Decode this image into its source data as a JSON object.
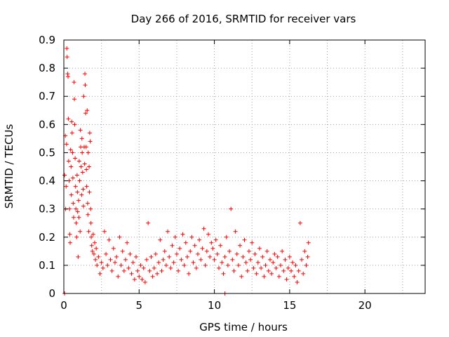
{
  "chart_data": {
    "type": "scatter",
    "title": "Day 266 of 2016, SRMTID for receiver vars",
    "xlabel": "GPS time / hours",
    "ylabel": "SRMTID / TECUs",
    "xlim": [
      0,
      24
    ],
    "ylim": [
      0,
      0.9
    ],
    "xticks": [
      0,
      5,
      10,
      15,
      20
    ],
    "yticks": [
      0,
      0.1,
      0.2,
      0.3,
      0.4,
      0.5,
      0.6,
      0.7,
      0.8,
      0.9
    ],
    "ytick_labels": [
      "0",
      "0.1",
      "0.2",
      "0.3",
      "0.4",
      "0.5",
      "0.6",
      "0.7",
      "0.8",
      "0.9"
    ],
    "grid": true,
    "marker": "+",
    "color": "#ff0000",
    "series": [
      {
        "name": "SRMTID",
        "points": [
          [
            0.05,
            0.42
          ],
          [
            0.1,
            0.56
          ],
          [
            0.12,
            0.3
          ],
          [
            0.15,
            0.38
          ],
          [
            0.18,
            0.53
          ],
          [
            0.2,
            0.87
          ],
          [
            0.22,
            0.84
          ],
          [
            0.25,
            0.78
          ],
          [
            0.28,
            0.77
          ],
          [
            0.3,
            0.62
          ],
          [
            0.32,
            0.47
          ],
          [
            0.35,
            0.4
          ],
          [
            0.38,
            0.3
          ],
          [
            0.4,
            0.21
          ],
          [
            0.42,
            0.18
          ],
          [
            0.45,
            0.51
          ],
          [
            0.48,
            0.45
          ],
          [
            0.5,
            0.35
          ],
          [
            0.52,
            0.61
          ],
          [
            0.55,
            0.57
          ],
          [
            0.58,
            0.5
          ],
          [
            0.6,
            0.41
          ],
          [
            0.62,
            0.32
          ],
          [
            0.65,
            0.27
          ],
          [
            0.68,
            0.75
          ],
          [
            0.7,
            0.69
          ],
          [
            0.72,
            0.6
          ],
          [
            0.75,
            0.48
          ],
          [
            0.78,
            0.38
          ],
          [
            0.8,
            0.3
          ],
          [
            0.82,
            0.25
          ],
          [
            0.85,
            0.2
          ],
          [
            0.88,
            0.42
          ],
          [
            0.9,
            0.36
          ],
          [
            0.92,
            0.29
          ],
          [
            0.95,
            0.13
          ],
          [
            0.98,
            0.33
          ],
          [
            1.0,
            0.27
          ],
          [
            1.02,
            0.47
          ],
          [
            1.05,
            0.4
          ],
          [
            1.08,
            0.22
          ],
          [
            1.1,
            0.58
          ],
          [
            1.12,
            0.52
          ],
          [
            1.15,
            0.45
          ],
          [
            1.18,
            0.35
          ],
          [
            1.2,
            0.55
          ],
          [
            1.22,
            0.5
          ],
          [
            1.25,
            0.43
          ],
          [
            1.28,
            0.37
          ],
          [
            1.3,
            0.31
          ],
          [
            1.32,
            0.7
          ],
          [
            1.35,
            0.52
          ],
          [
            1.38,
            0.46
          ],
          [
            1.4,
            0.78
          ],
          [
            1.42,
            0.74
          ],
          [
            1.45,
            0.64
          ],
          [
            1.48,
            0.52
          ],
          [
            1.5,
            0.44
          ],
          [
            1.52,
            0.38
          ],
          [
            1.55,
            0.65
          ],
          [
            1.58,
            0.32
          ],
          [
            1.6,
            0.28
          ],
          [
            1.62,
            0.5
          ],
          [
            1.65,
            0.22
          ],
          [
            1.68,
            0.45
          ],
          [
            1.7,
            0.36
          ],
          [
            1.72,
            0.57
          ],
          [
            1.75,
            0.54
          ],
          [
            1.78,
            0.3
          ],
          [
            1.8,
            0.25
          ],
          [
            1.82,
            0.2
          ],
          [
            1.85,
            0.17
          ],
          [
            1.9,
            0.15
          ],
          [
            1.95,
            0.21
          ],
          [
            2.0,
            0.14
          ],
          [
            2.05,
            0.18
          ],
          [
            2.1,
            0.12
          ],
          [
            2.15,
            0.16
          ],
          [
            2.2,
            0.1
          ],
          [
            2.3,
            0.13
          ],
          [
            2.4,
            0.07
          ],
          [
            2.5,
            0.11
          ],
          [
            2.6,
            0.09
          ],
          [
            2.7,
            0.22
          ],
          [
            2.8,
            0.14
          ],
          [
            2.9,
            0.1
          ],
          [
            3.0,
            0.19
          ],
          [
            3.1,
            0.12
          ],
          [
            3.2,
            0.08
          ],
          [
            3.3,
            0.16
          ],
          [
            3.4,
            0.11
          ],
          [
            3.5,
            0.13
          ],
          [
            3.6,
            0.06
          ],
          [
            3.7,
            0.2
          ],
          [
            3.8,
            0.1
          ],
          [
            3.9,
            0.15
          ],
          [
            4.0,
            0.08
          ],
          [
            4.1,
            0.12
          ],
          [
            4.2,
            0.18
          ],
          [
            4.3,
            0.09
          ],
          [
            4.4,
            0.14
          ],
          [
            4.5,
            0.07
          ],
          [
            4.6,
            0.11
          ],
          [
            4.7,
            0.05
          ],
          [
            4.8,
            0.13
          ],
          [
            4.9,
            0.08
          ],
          [
            5.0,
            0.06
          ],
          [
            5.1,
            0.1
          ],
          [
            5.2,
            0.05
          ],
          [
            5.3,
            0.09
          ],
          [
            5.4,
            0.04
          ],
          [
            5.5,
            0.12
          ],
          [
            5.6,
            0.25
          ],
          [
            5.7,
            0.08
          ],
          [
            5.8,
            0.13
          ],
          [
            5.9,
            0.06
          ],
          [
            6.0,
            0.09
          ],
          [
            6.1,
            0.14
          ],
          [
            6.2,
            0.07
          ],
          [
            6.3,
            0.11
          ],
          [
            6.4,
            0.19
          ],
          [
            6.5,
            0.08
          ],
          [
            6.6,
            0.12
          ],
          [
            6.7,
            0.15
          ],
          [
            6.8,
            0.1
          ],
          [
            6.9,
            0.22
          ],
          [
            7.0,
            0.13
          ],
          [
            7.1,
            0.09
          ],
          [
            7.2,
            0.17
          ],
          [
            7.3,
            0.11
          ],
          [
            7.4,
            0.2
          ],
          [
            7.5,
            0.14
          ],
          [
            7.6,
            0.08
          ],
          [
            7.7,
            0.16
          ],
          [
            7.8,
            0.12
          ],
          [
            7.9,
            0.21
          ],
          [
            8.0,
            0.1
          ],
          [
            8.1,
            0.18
          ],
          [
            8.2,
            0.13
          ],
          [
            8.3,
            0.07
          ],
          [
            8.4,
            0.15
          ],
          [
            8.5,
            0.2
          ],
          [
            8.6,
            0.11
          ],
          [
            8.7,
            0.17
          ],
          [
            8.8,
            0.09
          ],
          [
            8.9,
            0.14
          ],
          [
            9.0,
            0.19
          ],
          [
            9.1,
            0.12
          ],
          [
            9.2,
            0.16
          ],
          [
            9.3,
            0.23
          ],
          [
            9.4,
            0.1
          ],
          [
            9.5,
            0.15
          ],
          [
            9.6,
            0.21
          ],
          [
            9.7,
            0.13
          ],
          [
            9.8,
            0.18
          ],
          [
            9.9,
            0.16
          ],
          [
            10.0,
            0.12
          ],
          [
            10.1,
            0.19
          ],
          [
            10.2,
            0.14
          ],
          [
            10.3,
            0.09
          ],
          [
            10.4,
            0.17
          ],
          [
            10.5,
            0.11
          ],
          [
            10.6,
            0.07
          ],
          [
            10.7,
            0.13
          ],
          [
            10.8,
            0.2
          ],
          [
            10.9,
            0.1
          ],
          [
            11.0,
            0.15
          ],
          [
            11.1,
            0.3
          ],
          [
            11.2,
            0.12
          ],
          [
            11.3,
            0.08
          ],
          [
            11.4,
            0.22
          ],
          [
            11.5,
            0.14
          ],
          [
            11.6,
            0.1
          ],
          [
            11.7,
            0.17
          ],
          [
            11.8,
            0.06
          ],
          [
            11.9,
            0.13
          ],
          [
            12.0,
            0.19
          ],
          [
            12.1,
            0.11
          ],
          [
            12.2,
            0.08
          ],
          [
            12.3,
            0.15
          ],
          [
            12.4,
            0.12
          ],
          [
            12.5,
            0.18
          ],
          [
            12.6,
            0.09
          ],
          [
            12.7,
            0.14
          ],
          [
            12.8,
            0.07
          ],
          [
            12.9,
            0.11
          ],
          [
            13.0,
            0.16
          ],
          [
            13.1,
            0.09
          ],
          [
            13.2,
            0.13
          ],
          [
            13.3,
            0.06
          ],
          [
            13.4,
            0.1
          ],
          [
            13.5,
            0.15
          ],
          [
            13.6,
            0.08
          ],
          [
            13.7,
            0.12
          ],
          [
            13.8,
            0.07
          ],
          [
            13.9,
            0.11
          ],
          [
            14.0,
            0.14
          ],
          [
            14.1,
            0.09
          ],
          [
            14.2,
            0.13
          ],
          [
            14.3,
            0.06
          ],
          [
            14.4,
            0.1
          ],
          [
            14.5,
            0.15
          ],
          [
            14.6,
            0.08
          ],
          [
            14.7,
            0.12
          ],
          [
            14.8,
            0.05
          ],
          [
            14.9,
            0.09
          ],
          [
            15.0,
            0.13
          ],
          [
            15.1,
            0.08
          ],
          [
            15.2,
            0.11
          ],
          [
            15.3,
            0.06
          ],
          [
            15.4,
            0.1
          ],
          [
            15.5,
            0.04
          ],
          [
            15.6,
            0.08
          ],
          [
            15.7,
            0.25
          ],
          [
            15.8,
            0.12
          ],
          [
            15.9,
            0.07
          ],
          [
            16.0,
            0.15
          ],
          [
            16.1,
            0.1
          ],
          [
            16.2,
            0.13
          ],
          [
            16.25,
            0.18
          ],
          [
            0.05,
            0.0
          ],
          [
            10.7,
            0.0
          ]
        ]
      }
    ]
  }
}
